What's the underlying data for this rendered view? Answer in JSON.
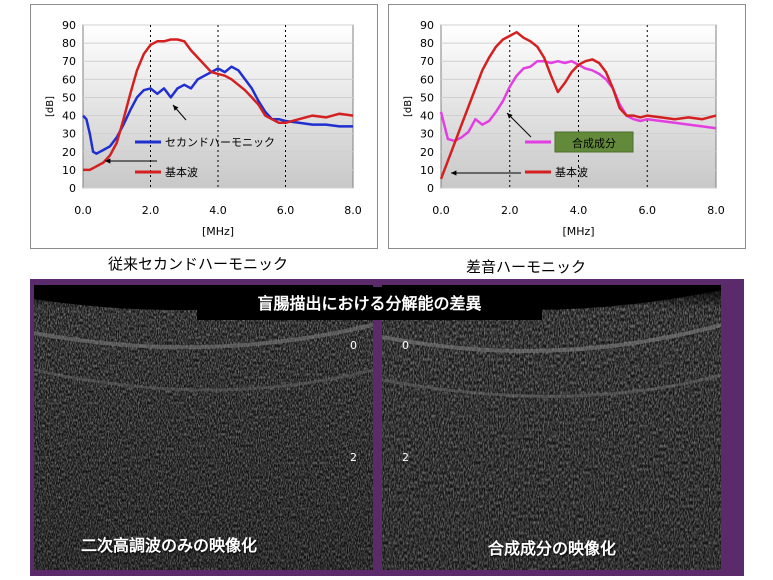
{
  "charts": {
    "left": {
      "caption": "従来セカンドハーモニック",
      "ylabel": "[dB]",
      "xlabel": "[MHz]",
      "legend": [
        {
          "name": "セカンドハーモニック",
          "color": "#1f2fd0"
        },
        {
          "name": "基本波",
          "color": "#d42020"
        }
      ]
    },
    "right": {
      "caption": "差音ハーモニック",
      "ylabel": "[dB]",
      "xlabel": "[MHz]",
      "legend": [
        {
          "name": "合成成分",
          "color": "#e23ee2"
        },
        {
          "name": "基本波",
          "color": "#d42020"
        }
      ]
    }
  },
  "chart_data": [
    {
      "type": "line",
      "title": "",
      "xlabel": "[MHz]",
      "ylabel": "[dB]",
      "xlim": [
        0,
        8
      ],
      "ylim": [
        0,
        90
      ],
      "xticks": [
        "0.0",
        "2.0",
        "4.0",
        "6.0",
        "8.0"
      ],
      "yticks": [
        "0",
        "10",
        "20",
        "30",
        "40",
        "50",
        "60",
        "70",
        "80",
        "90"
      ],
      "grid": true,
      "legend_position": "inside-left",
      "series": [
        {
          "name": "セカンドハーモニック",
          "color": "#1f2fd0",
          "x": [
            0.0,
            0.1,
            0.2,
            0.3,
            0.4,
            0.5,
            0.6,
            0.8,
            1.0,
            1.2,
            1.4,
            1.6,
            1.8,
            2.0,
            2.2,
            2.4,
            2.6,
            2.8,
            3.0,
            3.2,
            3.4,
            3.6,
            3.8,
            4.0,
            4.2,
            4.4,
            4.6,
            4.8,
            5.0,
            5.2,
            5.4,
            5.6,
            5.8,
            6.0,
            6.4,
            6.8,
            7.2,
            7.6,
            8.0
          ],
          "y": [
            40,
            38,
            30,
            20,
            19,
            20,
            21,
            23,
            28,
            35,
            43,
            50,
            54,
            55,
            52,
            55,
            50,
            55,
            57,
            55,
            60,
            62,
            64,
            66,
            64,
            67,
            65,
            60,
            55,
            48,
            42,
            38,
            38,
            37,
            36,
            35,
            35,
            34,
            34
          ]
        },
        {
          "name": "基本波",
          "color": "#d42020",
          "x": [
            0.0,
            0.2,
            0.4,
            0.6,
            0.8,
            1.0,
            1.2,
            1.4,
            1.6,
            1.8,
            2.0,
            2.2,
            2.4,
            2.6,
            2.8,
            3.0,
            3.2,
            3.4,
            3.6,
            3.8,
            4.0,
            4.2,
            4.4,
            4.6,
            4.8,
            5.0,
            5.2,
            5.4,
            5.6,
            5.8,
            6.0,
            6.4,
            6.8,
            7.2,
            7.6,
            8.0
          ],
          "y": [
            10,
            10,
            12,
            14,
            18,
            25,
            38,
            52,
            65,
            74,
            79,
            81,
            81,
            82,
            82,
            81,
            76,
            72,
            68,
            64,
            63,
            62,
            60,
            57,
            54,
            50,
            46,
            40,
            38,
            36,
            36,
            38,
            40,
            39,
            41,
            40
          ]
        }
      ]
    },
    {
      "type": "line",
      "title": "",
      "xlabel": "[MHz]",
      "ylabel": "[dB]",
      "xlim": [
        0,
        8
      ],
      "ylim": [
        0,
        90
      ],
      "xticks": [
        "0.0",
        "2.0",
        "4.0",
        "6.0",
        "8.0"
      ],
      "yticks": [
        "0",
        "10",
        "20",
        "30",
        "40",
        "50",
        "60",
        "70",
        "80",
        "90"
      ],
      "grid": true,
      "legend_position": "inside-center",
      "series": [
        {
          "name": "合成成分",
          "color": "#e23ee2",
          "x": [
            0.0,
            0.2,
            0.4,
            0.6,
            0.8,
            1.0,
            1.2,
            1.4,
            1.6,
            1.8,
            2.0,
            2.2,
            2.4,
            2.6,
            2.8,
            3.0,
            3.2,
            3.4,
            3.6,
            3.8,
            4.0,
            4.2,
            4.4,
            4.6,
            4.8,
            5.0,
            5.2,
            5.4,
            5.6,
            5.8,
            6.0,
            6.4,
            6.8,
            7.2,
            7.6,
            8.0
          ],
          "y": [
            42,
            27,
            26,
            28,
            31,
            38,
            35,
            37,
            42,
            48,
            56,
            62,
            66,
            67,
            70,
            70,
            69,
            70,
            69,
            70,
            68,
            66,
            65,
            63,
            60,
            55,
            46,
            40,
            38,
            37,
            38,
            37,
            36,
            35,
            34,
            33
          ]
        },
        {
          "name": "基本波",
          "color": "#d42020",
          "x": [
            0.0,
            0.2,
            0.4,
            0.6,
            0.8,
            1.0,
            1.2,
            1.4,
            1.6,
            1.8,
            2.0,
            2.2,
            2.4,
            2.6,
            2.8,
            3.0,
            3.2,
            3.4,
            3.6,
            3.8,
            4.0,
            4.2,
            4.4,
            4.6,
            4.8,
            5.0,
            5.2,
            5.4,
            5.6,
            5.8,
            6.0,
            6.4,
            6.8,
            7.2,
            7.6,
            8.0
          ],
          "y": [
            5,
            15,
            25,
            35,
            45,
            55,
            65,
            72,
            78,
            82,
            84,
            86,
            83,
            81,
            78,
            72,
            62,
            53,
            58,
            64,
            68,
            70,
            71,
            69,
            64,
            55,
            44,
            40,
            40,
            39,
            40,
            39,
            38,
            39,
            38,
            40
          ]
        }
      ]
    }
  ],
  "ultrasound": {
    "title": "盲腸描出における分解能の差異",
    "left_caption": "二次高調波のみの映像化",
    "right_caption": "合成成分の映像化",
    "depth_marks": [
      "0",
      "2"
    ]
  }
}
